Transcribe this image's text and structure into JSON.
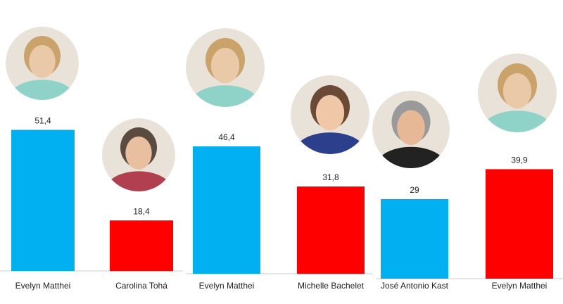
{
  "chart_data": {
    "type": "bar",
    "categories": [
      "Evelyn Matthei",
      "Carolina Tohá",
      "Evelyn Matthei",
      "Michelle Bachelet",
      "José Antonio Kast",
      "Evelyn Matthei"
    ],
    "series": [
      {
        "colors": [
          "#00b0f0",
          "#ff0000",
          "#00b0f0",
          "#ff0000",
          "#00b0f0",
          "#ff0000"
        ],
        "values": [
          51.4,
          18.4,
          46.4,
          31.8,
          29,
          39.9
        ],
        "value_labels": [
          "51,4",
          "18,4",
          "46,4",
          "31,8",
          "29",
          "39,9"
        ]
      }
    ]
  }
}
